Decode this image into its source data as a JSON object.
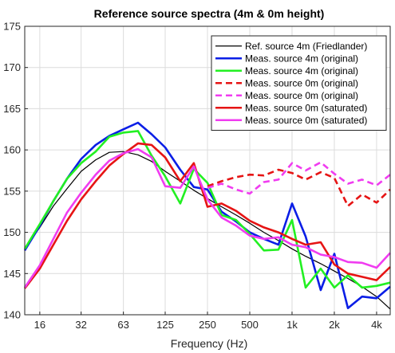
{
  "chart_data": {
    "type": "line",
    "title": "Reference source spectra (4m & 0m height)",
    "xlabel": "Frequency (Hz)",
    "ylabel": "",
    "xscale": "log",
    "xlim": [
      12.5,
      5000
    ],
    "ylim": [
      140,
      175
    ],
    "grid": true,
    "legend_position": "top-right",
    "xticks": [
      16,
      31.5,
      63,
      125,
      250,
      500,
      1000,
      2000,
      4000
    ],
    "xtick_labels": [
      "16",
      "32",
      "63",
      "125",
      "250",
      "500",
      "1k",
      "2k",
      "4k"
    ],
    "yticks": [
      140,
      145,
      150,
      155,
      160,
      165,
      170,
      175
    ],
    "ytick_labels": [
      "140",
      "145",
      "150",
      "155",
      "160",
      "165",
      "170",
      "175"
    ],
    "series": [
      {
        "name": "Ref. source 4m (Friedlander)",
        "color": "#000000",
        "width": 1.2,
        "dash": "",
        "x": [
          12.5,
          16,
          20,
          25,
          31.5,
          40,
          50,
          63,
          80,
          100,
          125,
          160,
          200,
          250,
          315,
          400,
          500,
          630,
          800,
          1000,
          1250,
          1600,
          2000,
          2500,
          3150,
          4000,
          5000
        ],
        "y": [
          148.0,
          150.6,
          153.2,
          155.3,
          157.4,
          158.8,
          159.7,
          159.8,
          159.4,
          158.6,
          157.4,
          156.2,
          155.1,
          154.1,
          153.1,
          152.1,
          151.1,
          150.0,
          149.0,
          148.0,
          147.1,
          146.2,
          145.3,
          144.4,
          143.4,
          142.2,
          140.7
        ]
      },
      {
        "name": "Meas. source 4m (original)",
        "color": "#0a1ee6",
        "width": 2.6,
        "dash": "",
        "x": [
          12.5,
          16,
          20,
          25,
          31.5,
          40,
          50,
          63,
          80,
          100,
          125,
          160,
          200,
          250,
          315,
          400,
          500,
          630,
          800,
          1000,
          1250,
          1600,
          2000,
          2500,
          3150,
          4000,
          5000
        ],
        "y": [
          147.8,
          150.8,
          153.8,
          156.5,
          158.9,
          160.6,
          161.7,
          162.5,
          163.3,
          161.9,
          160.3,
          157.6,
          155.5,
          155.2,
          152.5,
          151.3,
          150.0,
          149.2,
          148.5,
          153.5,
          149.5,
          143.0,
          147.4,
          140.8,
          142.2,
          142.0,
          143.4
        ]
      },
      {
        "name": "Meas. source 4m (original)",
        "color": "#22f022",
        "width": 2.6,
        "dash": "",
        "x": [
          12.5,
          16,
          20,
          25,
          31.5,
          40,
          50,
          63,
          80,
          100,
          125,
          160,
          200,
          250,
          315,
          400,
          500,
          630,
          800,
          1000,
          1250,
          1600,
          2000,
          2500,
          3150,
          4000,
          5000
        ],
        "y": [
          148.0,
          151.0,
          153.8,
          156.5,
          158.4,
          159.8,
          161.6,
          162.1,
          162.3,
          159.3,
          156.8,
          153.5,
          157.7,
          156.0,
          152.1,
          151.5,
          149.8,
          147.8,
          147.9,
          151.5,
          143.3,
          145.6,
          143.3,
          144.8,
          143.3,
          143.5,
          143.9
        ]
      },
      {
        "name": "Meas. source 0m (original)",
        "color": "#e61414",
        "width": 2.6,
        "dash": "8,5",
        "x": [
          250,
          315,
          400,
          500,
          630,
          800,
          1000,
          1250,
          1600,
          2000,
          2500,
          3150,
          4000,
          5000
        ],
        "y": [
          155.6,
          156.2,
          156.7,
          157.0,
          156.9,
          157.6,
          157.2,
          156.4,
          157.3,
          156.6,
          153.2,
          154.6,
          153.6,
          155.2
        ]
      },
      {
        "name": "Meas. source 0m (original)",
        "color": "#f03cf0",
        "width": 2.6,
        "dash": "8,5",
        "x": [
          250,
          315,
          400,
          500,
          630,
          800,
          1000,
          1250,
          1600,
          2000,
          2500,
          3150,
          4000,
          5000
        ],
        "y": [
          155.4,
          155.9,
          155.2,
          154.7,
          156.1,
          156.4,
          158.4,
          157.5,
          158.5,
          157.1,
          155.9,
          156.4,
          155.7,
          157.0
        ]
      },
      {
        "name": "Meas. source 0m (saturated)",
        "color": "#e61414",
        "width": 2.6,
        "dash": "",
        "x": [
          12.5,
          16,
          20,
          25,
          31.5,
          40,
          50,
          63,
          80,
          100,
          125,
          160,
          200,
          250,
          315,
          400,
          500,
          630,
          800,
          1000,
          1250,
          1600,
          2000,
          2500,
          3150,
          4000,
          5000
        ],
        "y": [
          143.2,
          145.6,
          148.5,
          151.4,
          154.0,
          156.2,
          158.1,
          159.5,
          160.8,
          160.6,
          159.1,
          156.2,
          158.4,
          153.1,
          153.5,
          152.6,
          151.4,
          150.6,
          150.0,
          149.2,
          148.5,
          148.8,
          146.1,
          145.0,
          144.6,
          144.2,
          145.8
        ]
      },
      {
        "name": "Meas. source 0m (saturated)",
        "color": "#f03cf0",
        "width": 2.6,
        "dash": "",
        "x": [
          12.5,
          16,
          20,
          25,
          31.5,
          40,
          50,
          63,
          80,
          100,
          125,
          160,
          200,
          250,
          315,
          400,
          500,
          630,
          800,
          1000,
          1250,
          1600,
          2000,
          2500,
          3150,
          4000,
          5000
        ],
        "y": [
          143.3,
          146.0,
          149.2,
          152.4,
          154.8,
          157.0,
          158.7,
          159.6,
          160.1,
          159.1,
          155.6,
          155.4,
          158.0,
          154.0,
          151.8,
          150.8,
          149.6,
          149.2,
          149.4,
          148.5,
          148.2,
          147.3,
          147.0,
          146.4,
          146.3,
          145.7,
          147.5
        ]
      }
    ],
    "legend": [
      {
        "label": "Ref. source 4m (Friedlander)",
        "color": "#000000",
        "width": 1.2,
        "dash": ""
      },
      {
        "label": "Meas. source 4m (original)",
        "color": "#0a1ee6",
        "width": 2.6,
        "dash": ""
      },
      {
        "label": "Meas. source 4m (original)",
        "color": "#22f022",
        "width": 2.6,
        "dash": ""
      },
      {
        "label": "Meas. source 0m (original)",
        "color": "#e61414",
        "width": 2.6,
        "dash": "8,5"
      },
      {
        "label": "Meas. source 0m (original)",
        "color": "#f03cf0",
        "width": 2.6,
        "dash": "8,5"
      },
      {
        "label": "Meas. source 0m (saturated)",
        "color": "#e61414",
        "width": 2.6,
        "dash": ""
      },
      {
        "label": "Meas. source 0m (saturated)",
        "color": "#f03cf0",
        "width": 2.6,
        "dash": ""
      }
    ]
  }
}
